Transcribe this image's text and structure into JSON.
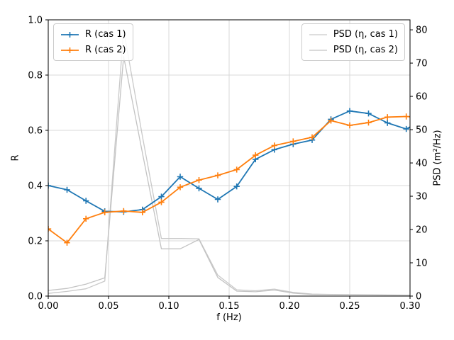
{
  "figure": {
    "kind": "matplotlib-line-figure",
    "background": "#ffffff"
  },
  "chart_data": {
    "type": "line",
    "title": "",
    "xlabel": "f (Hz)",
    "ylabel_left": "R",
    "ylabel_right": "PSD (m²/Hz)",
    "xlim": [
      0.0,
      0.3
    ],
    "ylim_left": [
      0.0,
      1.0
    ],
    "ylim_right": [
      0,
      83
    ],
    "grid": true,
    "grid_color": "#d9d9d9",
    "x_ticks": [
      "0.00",
      "0.05",
      "0.10",
      "0.15",
      "0.20",
      "0.25",
      "0.30"
    ],
    "y_ticks_left": [
      "0.0",
      "0.2",
      "0.4",
      "0.6",
      "0.8",
      "1.0"
    ],
    "y_ticks_right": [
      "0",
      "10",
      "20",
      "30",
      "40",
      "50",
      "60",
      "70",
      "80"
    ],
    "x": [
      0.0,
      0.0156,
      0.0313,
      0.0469,
      0.0625,
      0.0781,
      0.0938,
      0.1094,
      0.125,
      0.1406,
      0.1563,
      0.1719,
      0.1875,
      0.2031,
      0.2188,
      0.2344,
      0.25,
      0.2656,
      0.2813,
      0.2969,
      0.3
    ],
    "series": [
      {
        "name": "R (cas 1)",
        "axis": "left",
        "color": "#1f77b4",
        "marker": "plus",
        "line_width": 1.8,
        "values": [
          0.4,
          0.385,
          0.345,
          0.307,
          0.305,
          0.313,
          0.36,
          0.432,
          0.39,
          0.35,
          0.397,
          0.495,
          0.53,
          0.55,
          0.565,
          0.64,
          0.67,
          0.661,
          0.627,
          0.605,
          0.612
        ]
      },
      {
        "name": "R (cas 2)",
        "axis": "left",
        "color": "#ff7f0e",
        "marker": "plus",
        "line_width": 1.8,
        "values": [
          0.243,
          0.193,
          0.28,
          0.303,
          0.308,
          0.303,
          0.34,
          0.394,
          0.42,
          0.437,
          0.458,
          0.51,
          0.545,
          0.56,
          0.575,
          0.635,
          0.618,
          0.628,
          0.648,
          0.65,
          0.649
        ]
      },
      {
        "name": "PSD (η, cas 1)",
        "axis": "right",
        "color": "#c9c9c9",
        "marker": null,
        "line_width": 1.3,
        "values": [
          0.8,
          1.4,
          2.2,
          4.5,
          80.0,
          48.0,
          17.3,
          17.3,
          17.2,
          6.3,
          1.9,
          1.6,
          2.1,
          1.1,
          0.6,
          0.5,
          0.45,
          0.4,
          0.35,
          0.3,
          0.3
        ]
      },
      {
        "name": "PSD (η, cas 2)",
        "axis": "right",
        "color": "#c3c3c3",
        "marker": null,
        "line_width": 1.3,
        "values": [
          1.7,
          2.3,
          3.6,
          5.5,
          72.0,
          43.0,
          14.2,
          14.2,
          17.0,
          5.6,
          1.5,
          1.3,
          1.8,
          0.9,
          0.5,
          0.45,
          0.4,
          0.35,
          0.3,
          0.3,
          0.3
        ]
      }
    ],
    "legend_left": {
      "position": "upper left",
      "items": [
        "R (cas 1)",
        "R (cas 2)"
      ]
    },
    "legend_right": {
      "position": "upper right",
      "items": [
        "PSD (η, cas 1)",
        "PSD (η, cas 2)"
      ]
    }
  }
}
